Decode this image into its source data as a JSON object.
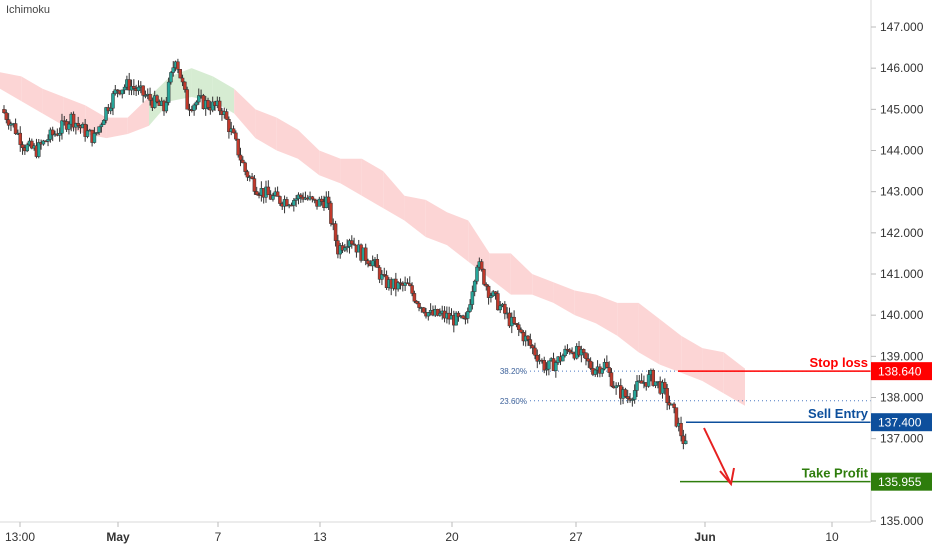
{
  "indicator_label": "Ichimoku",
  "chart_data": {
    "type": "candlestick",
    "y_axis": {
      "ticks": [
        "147.000",
        "146.000",
        "145.000",
        "144.000",
        "143.000",
        "142.000",
        "141.000",
        "140.000",
        "139.000",
        "138.000",
        "137.000",
        "135.000"
      ],
      "tick_values": [
        147,
        146,
        145,
        144,
        143,
        142,
        141,
        140,
        139,
        138,
        137,
        135
      ],
      "range": [
        134.8,
        147.6
      ]
    },
    "x_axis": {
      "ticks": [
        "13:00",
        "May",
        "7",
        "13",
        "20",
        "27",
        "Jun",
        "10"
      ]
    },
    "levels": [
      {
        "label": "Stop loss",
        "value_label": "138.640",
        "value": 138.64,
        "color": "#ff0000"
      },
      {
        "label": "Sell Entry",
        "value_label": "137.400",
        "value": 137.4,
        "color": "#0d4f9c"
      },
      {
        "label": "Take Profit",
        "value_label": "135.955",
        "value": 135.955,
        "color": "#2e7d0c"
      }
    ],
    "fibonacci": [
      {
        "label": "38.20%",
        "value": 138.64
      },
      {
        "label": "23.60%",
        "value": 137.92
      }
    ],
    "colors": {
      "bull": "#26a69a",
      "bear": "#c0392b",
      "cloud_bear": "#fcd5d5",
      "cloud_bull": "#d6ecd2",
      "arrow": "#e62020"
    },
    "closes": [
      145.0,
      144.6,
      144.1,
      144.0,
      144.3,
      144.5,
      144.8,
      144.5,
      144.3,
      145.0,
      145.5,
      145.6,
      145.4,
      145.2,
      145.0,
      146.3,
      145.1,
      145.2,
      145.1,
      145.0,
      144.3,
      143.5,
      143.1,
      142.9,
      142.8,
      142.8,
      142.9,
      142.7,
      142.8,
      141.6,
      141.9,
      141.5,
      141.3,
      140.8,
      140.7,
      140.7,
      140.3,
      140.0,
      140.0,
      139.9,
      139.8,
      141.3,
      140.6,
      140.2,
      139.8,
      139.5,
      139.1,
      138.7,
      138.9,
      139.2,
      139.0,
      138.7,
      138.8,
      138.2,
      138.0,
      138.3,
      138.5,
      138.2,
      137.6,
      136.8
    ],
    "cloud": {
      "upper": [
        145.9,
        145.8,
        145.5,
        145.3,
        145.1,
        144.8,
        144.8,
        145.3,
        145.8,
        146.0,
        145.8,
        145.5,
        145.0,
        144.8,
        144.5,
        144.0,
        143.8,
        143.8,
        143.5,
        142.9,
        142.8,
        142.5,
        142.3,
        141.5,
        141.5,
        141.0,
        140.8,
        140.6,
        140.5,
        140.3,
        140.3,
        139.9,
        139.5,
        139.2,
        139.1,
        138.7
      ],
      "lower": [
        145.5,
        145.2,
        144.9,
        144.6,
        144.4,
        144.3,
        144.4,
        144.6,
        145.2,
        145.3,
        145.2,
        144.9,
        144.3,
        144.0,
        143.8,
        143.4,
        143.2,
        142.9,
        142.6,
        142.3,
        141.9,
        141.7,
        141.3,
        140.9,
        140.5,
        140.5,
        140.3,
        140.0,
        139.8,
        139.5,
        139.1,
        138.8,
        138.6,
        138.4,
        138.1,
        137.8
      ]
    }
  }
}
